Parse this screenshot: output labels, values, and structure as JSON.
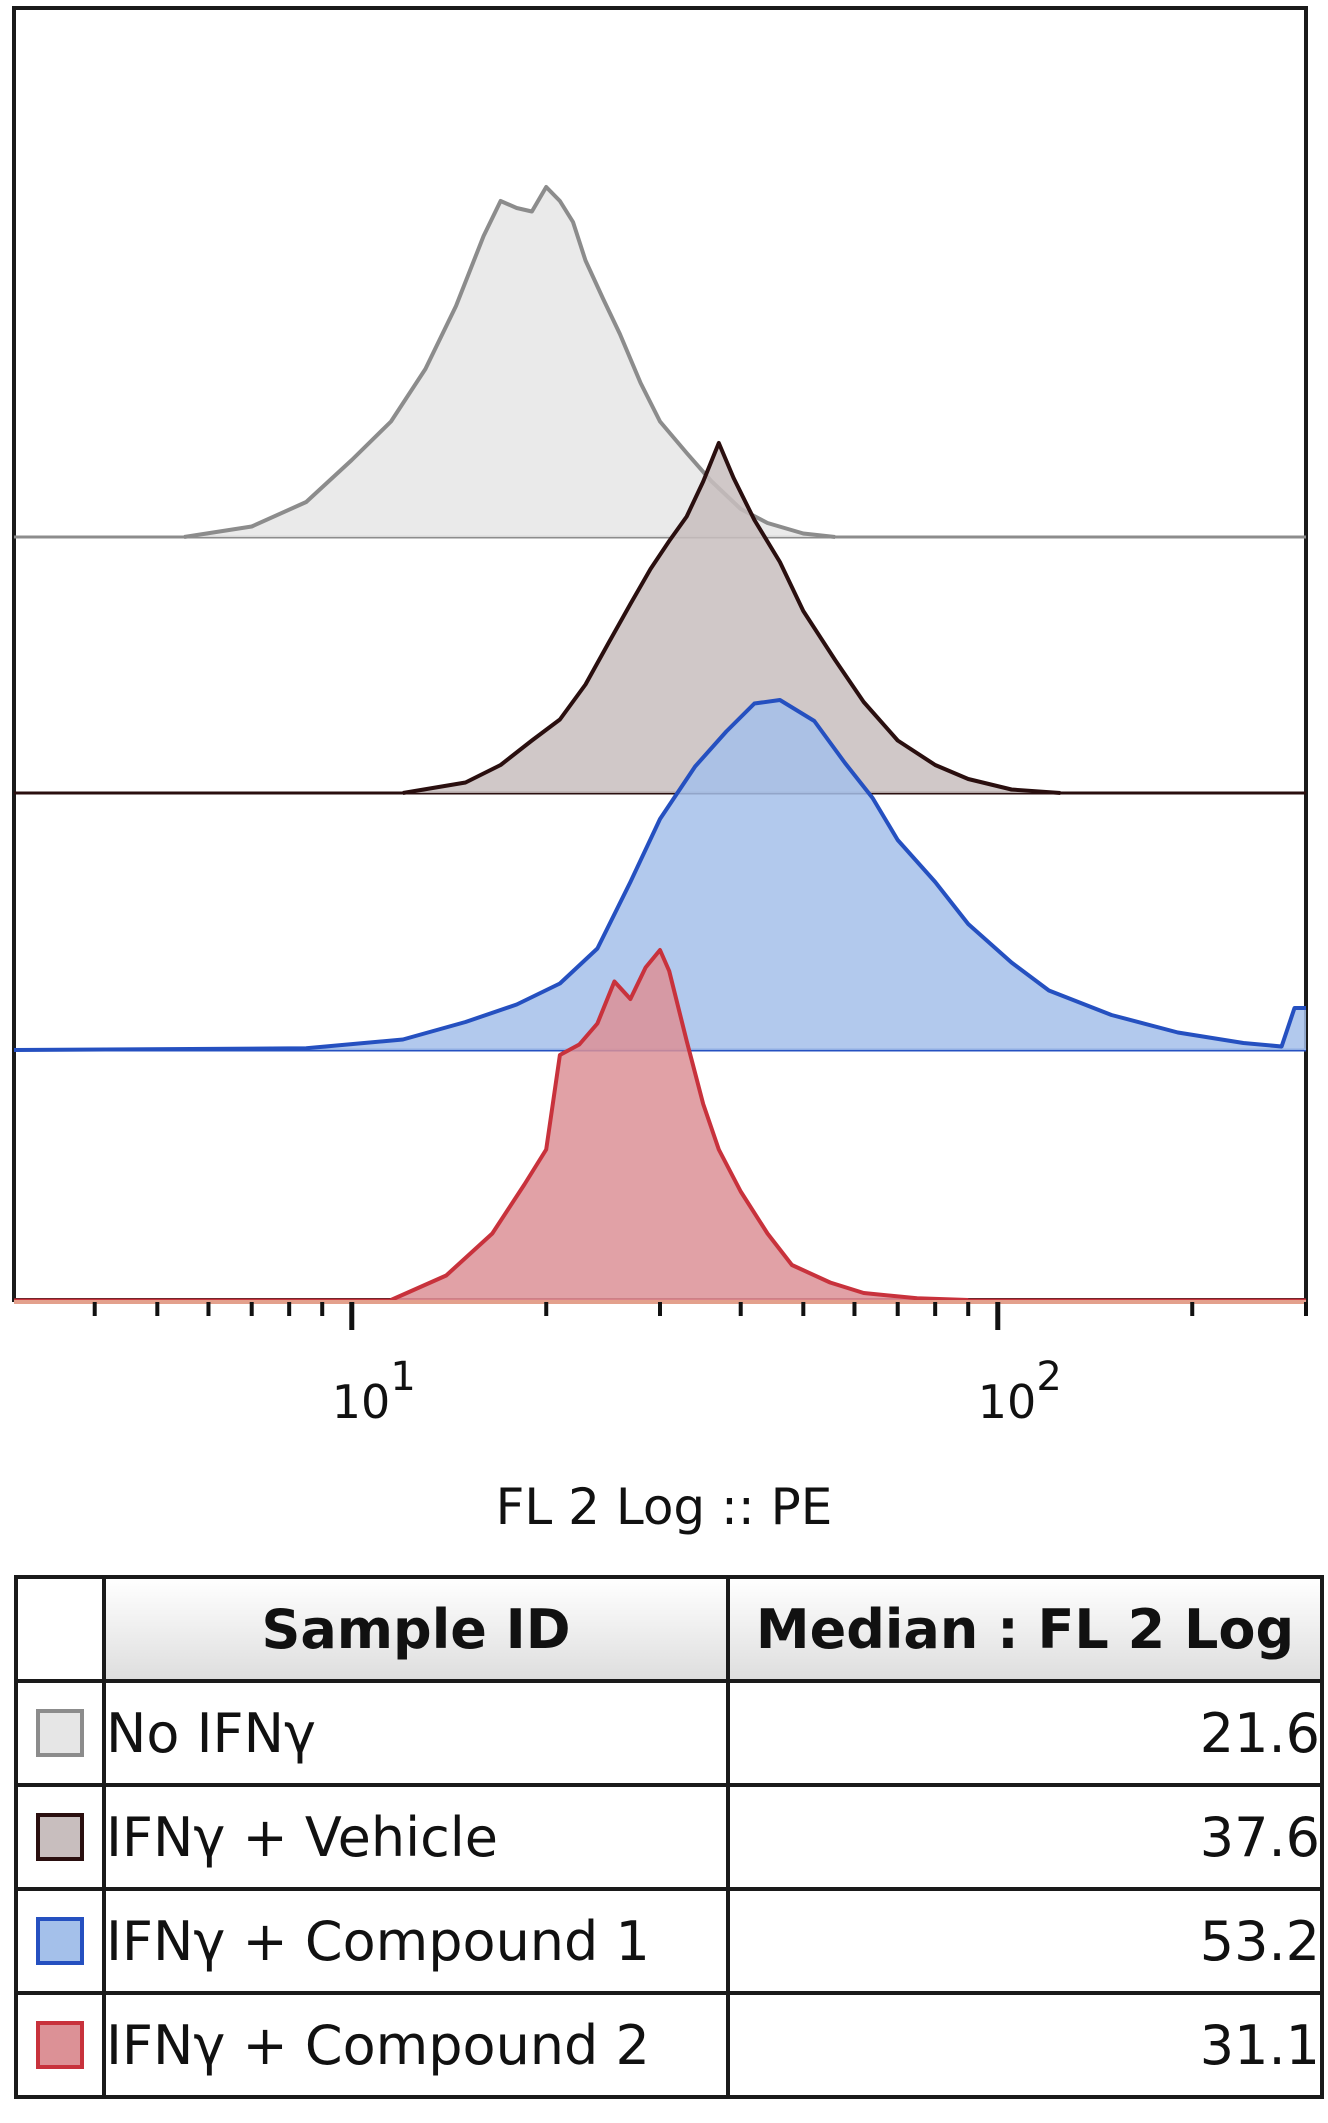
{
  "chart_data": {
    "type": "area",
    "xlabel": "FL 2 Log :: PE",
    "x_scale": "log",
    "xlim": [
      3,
      300
    ],
    "x_major_ticks": [
      {
        "value": 10,
        "label_base": "10",
        "label_exp": "1"
      },
      {
        "value": 100,
        "label_base": "10",
        "label_exp": "2"
      }
    ],
    "x_minor_ticks": [
      4,
      5,
      6,
      7,
      8,
      9,
      20,
      30,
      40,
      50,
      60,
      70,
      80,
      90,
      200,
      300
    ],
    "layout": "offset-histogram",
    "series": [
      {
        "name": "No IFNγ",
        "fill": "#e6e6e6",
        "stroke": "#8c8c8c",
        "x": [
          5.5,
          7,
          8.5,
          10,
          11.5,
          13,
          14.5,
          16,
          17,
          18,
          19,
          20,
          21,
          22,
          23,
          24.5,
          26,
          28,
          30,
          33,
          36,
          40,
          44,
          50,
          56
        ],
        "y": [
          0,
          0.03,
          0.1,
          0.22,
          0.33,
          0.48,
          0.66,
          0.86,
          0.96,
          0.94,
          0.93,
          1.0,
          0.96,
          0.9,
          0.79,
          0.68,
          0.58,
          0.44,
          0.33,
          0.24,
          0.16,
          0.08,
          0.04,
          0.01,
          0
        ]
      },
      {
        "name": "IFNγ + Vehicle",
        "fill": "#c8bebe",
        "stroke": "#2a0f0f",
        "x": [
          12,
          15,
          17,
          19,
          21,
          23,
          25,
          27,
          29,
          31,
          33,
          35,
          37,
          39,
          42,
          46,
          50,
          56,
          62,
          70,
          80,
          90,
          105,
          125
        ],
        "y": [
          0,
          0.03,
          0.08,
          0.15,
          0.21,
          0.31,
          0.43,
          0.54,
          0.64,
          0.72,
          0.79,
          0.89,
          1.0,
          0.9,
          0.78,
          0.66,
          0.52,
          0.38,
          0.26,
          0.15,
          0.08,
          0.04,
          0.01,
          0
        ]
      },
      {
        "name": "IFNγ + Compound 1",
        "fill": "#a4c0ea",
        "stroke": "#2550c0",
        "x": [
          3.0,
          8.5,
          12,
          15,
          18,
          21,
          24,
          27,
          30,
          34,
          38,
          42,
          46,
          52,
          58,
          64,
          70,
          80,
          90,
          105,
          120,
          150,
          190,
          240,
          275,
          288,
          300
        ],
        "y": [
          0,
          0.005,
          0.03,
          0.08,
          0.13,
          0.19,
          0.29,
          0.48,
          0.66,
          0.81,
          0.91,
          0.99,
          1.0,
          0.94,
          0.82,
          0.72,
          0.6,
          0.48,
          0.36,
          0.25,
          0.17,
          0.1,
          0.05,
          0.02,
          0.01,
          0.12,
          0.12
        ]
      },
      {
        "name": "IFNγ + Compound 2",
        "fill": "#dc9196",
        "stroke": "#c8323c",
        "x": [
          11.5,
          14,
          16.5,
          18.5,
          20,
          21,
          22.5,
          24,
          25.5,
          27,
          28.5,
          30,
          31,
          33,
          35,
          37,
          40,
          44,
          48,
          55,
          62,
          75,
          90
        ],
        "y": [
          0,
          0.07,
          0.19,
          0.33,
          0.43,
          0.7,
          0.73,
          0.79,
          0.91,
          0.86,
          0.95,
          1.0,
          0.94,
          0.74,
          0.56,
          0.43,
          0.31,
          0.19,
          0.1,
          0.05,
          0.02,
          0.005,
          0
        ]
      }
    ]
  },
  "legend_table": {
    "headers": {
      "sample": "Sample ID",
      "median": "Median : FL 2 Log"
    },
    "rows": [
      {
        "sample": "No IFNγ",
        "median": "21.6",
        "swatch_fill": "#e6e6e6",
        "swatch_stroke": "#8c8c8c"
      },
      {
        "sample": "IFNγ + Vehicle",
        "median": "37.6",
        "swatch_fill": "#c8bebe",
        "swatch_stroke": "#2a0f0f"
      },
      {
        "sample": "IFNγ + Compound 1",
        "median": "53.2",
        "swatch_fill": "#a4c0ea",
        "swatch_stroke": "#2550c0"
      },
      {
        "sample": "IFNγ + Compound 2",
        "median": "31.1",
        "swatch_fill": "#dc9196",
        "swatch_stroke": "#c8323c"
      }
    ]
  }
}
